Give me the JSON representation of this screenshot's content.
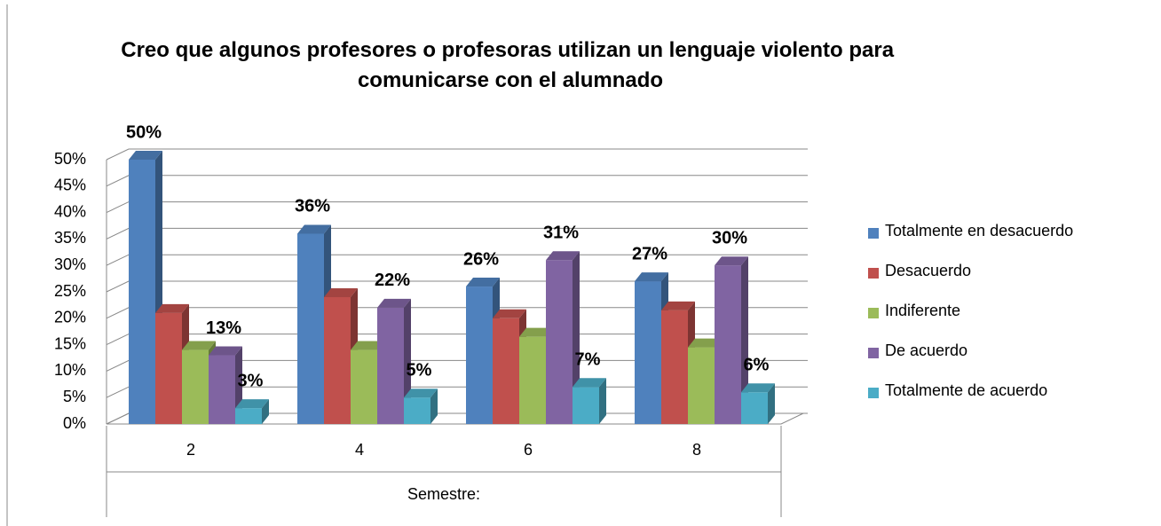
{
  "chart_data": {
    "type": "bar3d",
    "title": "Creo que algunos profesores o profesoras utilizan un lenguaje violento para comunicarse con el alumnado",
    "x_label": "Semestre:",
    "categories": [
      "2",
      "4",
      "6",
      "8"
    ],
    "series": [
      {
        "name": "Totalmente en desacuerdo",
        "color": "#4f81bd",
        "values": [
          50,
          36,
          26,
          27
        ],
        "value_labels": [
          "50%",
          "36%",
          "26%",
          "27%"
        ]
      },
      {
        "name": "Desacuerdo",
        "color": "#c0504d",
        "values": [
          21,
          24,
          20,
          21.5
        ]
      },
      {
        "name": "Indiferente",
        "color": "#9bbb59",
        "values": [
          14,
          14,
          16.5,
          14.5
        ]
      },
      {
        "name": "De acuerdo",
        "color": "#8064a2",
        "values": [
          13,
          22,
          31,
          30
        ],
        "value_labels": [
          "13%",
          "22%",
          "31%",
          "30%"
        ]
      },
      {
        "name": "Totalmente de acuerdo",
        "color": "#4bacc6",
        "values": [
          3,
          5,
          7,
          6
        ],
        "value_labels": [
          "3%",
          "5%",
          "7%",
          "6%"
        ]
      }
    ],
    "ylim": [
      0,
      50
    ],
    "yticks": [
      {
        "value": 0,
        "label": "0%"
      },
      {
        "value": 5,
        "label": "5%"
      },
      {
        "value": 10,
        "label": "10%"
      },
      {
        "value": 15,
        "label": "15%"
      },
      {
        "value": 20,
        "label": "20%"
      },
      {
        "value": 25,
        "label": "25%"
      },
      {
        "value": 30,
        "label": "30%"
      },
      {
        "value": 35,
        "label": "35%"
      },
      {
        "value": 40,
        "label": "40%"
      },
      {
        "value": 45,
        "label": "45%"
      },
      {
        "value": 50,
        "label": "50%"
      }
    ],
    "grid": true,
    "legend": "right"
  }
}
